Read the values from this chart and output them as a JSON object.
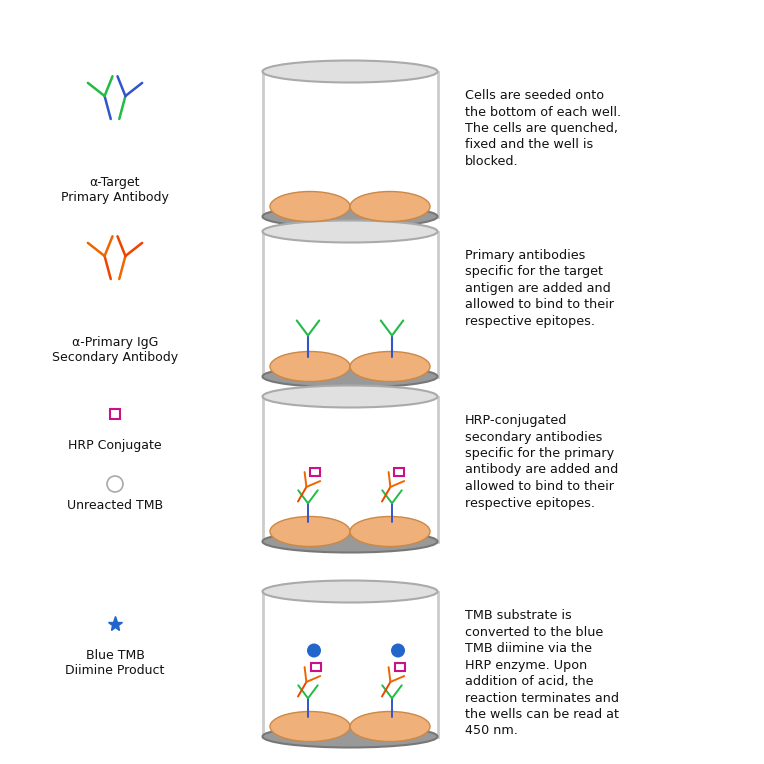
{
  "background": "#ffffff",
  "rows": [
    {
      "legend_label": "α-Target\nPrimary Antibody",
      "legend_type": "primary_antibody",
      "well_antibodies": "none",
      "description": "Cells are seeded onto\nthe bottom of each well.\nThe cells are quenched,\nfixed and the well is\nblocked."
    },
    {
      "legend_label": "α-Primary IgG\nSecondary Antibody",
      "legend_type": "secondary_antibody",
      "well_antibodies": "primary",
      "description": "Primary antibodies\nspecific for the target\nantigen are added and\nallowed to bind to their\nrespective epitopes."
    },
    {
      "legend_label": "HRP Conjugate",
      "legend_type": "hrp_conjugate",
      "legend_label2": "Unreacted TMB",
      "legend_type2": "tmb_circle",
      "well_antibodies": "hrp",
      "description": "HRP-conjugated\nsecondary antibodies\nspecific for the primary\nantibody are added and\nallowed to bind to their\nrespective epitopes."
    },
    {
      "legend_label": "Blue TMB\nDiimine Product",
      "legend_type": "blue_tmb",
      "well_antibodies": "blue",
      "description": "TMB substrate is\nconverted to the blue\nTMB diimine via the\nHRP enzyme. Upon\naddition of acid, the\nreaction terminates and\nthe wells can be read at\n450 nm."
    }
  ],
  "colors": {
    "primary_arm": "#22bb44",
    "primary_stem": "#3355cc",
    "secondary_arm": "#ee6600",
    "secondary_stem": "#ee4400",
    "hrp_color": "#cc1188",
    "tmb_color": "#2266cc",
    "cell_fill": "#f0b07a",
    "cell_edge": "#cc8844",
    "well_side": "#cccccc",
    "well_top_fill": "#e0e0e0",
    "well_top_edge": "#aaaaaa",
    "well_bot_fill": "#999999",
    "well_bot_edge": "#777777"
  }
}
